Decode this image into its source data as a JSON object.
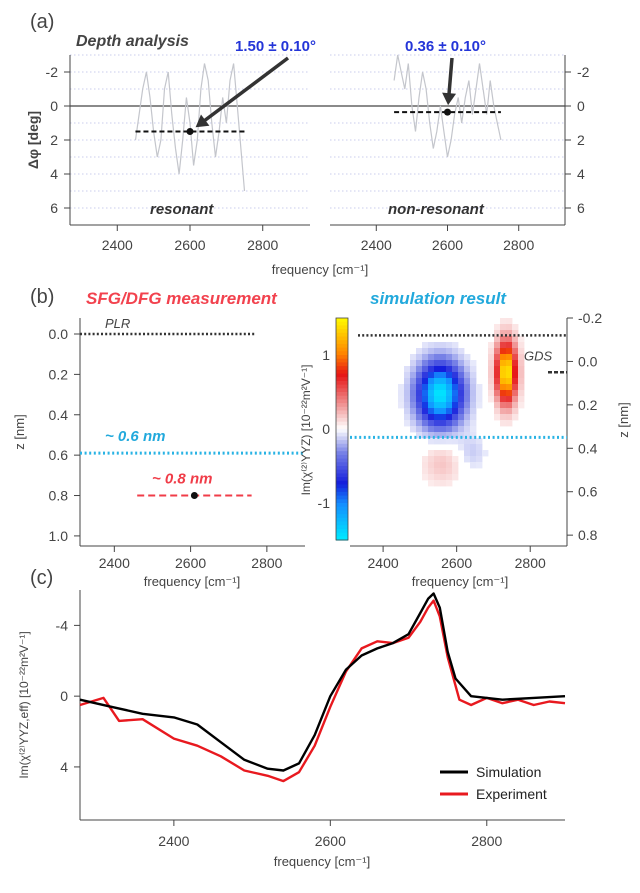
{
  "panel_labels": [
    "(a)",
    "(b)",
    "(c)"
  ],
  "colors": {
    "blue_text": "#2435d8",
    "red_text": "#f2424e",
    "cyan_text": "#22a9dc",
    "dark_text": "#444444",
    "sim_line": "#000000",
    "exp_line": "#e8191f",
    "grid": "#b8bce8"
  },
  "chart_data": [
    {
      "id": "a",
      "type": "line",
      "title": "Depth analysis",
      "ylabel": "Δφ [deg]",
      "xlabel": "frequency [cm⁻¹]",
      "yaxis_reversed": true,
      "ylim": [
        -3,
        7
      ],
      "yticks": [
        "-2",
        "0",
        "2",
        "4",
        "6"
      ],
      "grid": true,
      "subpanels": [
        {
          "name": "resonant",
          "xlim": [
            2270,
            2930
          ],
          "xticks": [
            "2400",
            "2600",
            "2800"
          ],
          "mean_line": {
            "x": [
              2450,
              2750
            ],
            "y": 1.5
          },
          "point": {
            "x": 2600,
            "y": 1.5
          },
          "annotation": "1.50 ± 0.10°",
          "trace": {
            "x": [
              2450,
              2460,
              2470,
              2480,
              2490,
              2500,
              2510,
              2520,
              2530,
              2540,
              2550,
              2560,
              2570,
              2580,
              2590,
              2600,
              2610,
              2620,
              2630,
              2640,
              2650,
              2660,
              2670,
              2680,
              2690,
              2700,
              2710,
              2720,
              2730,
              2740,
              2750
            ],
            "y": [
              2.0,
              0.5,
              -1.0,
              -2.0,
              -0.5,
              1.5,
              3.0,
              2.0,
              -1.0,
              -2.0,
              0.5,
              2.5,
              4.0,
              2.0,
              -0.5,
              1.0,
              3.5,
              2.0,
              -1.0,
              -2.5,
              -1.5,
              1.0,
              3.0,
              1.5,
              -0.5,
              1.0,
              -1.5,
              -2.5,
              0.0,
              2.5,
              5.0
            ]
          }
        },
        {
          "name": "non-resonant",
          "xlim": [
            2270,
            2930
          ],
          "xticks": [
            "2400",
            "2600",
            "2800"
          ],
          "mean_line": {
            "x": [
              2450,
              2750
            ],
            "y": 0.36
          },
          "point": {
            "x": 2600,
            "y": 0.36
          },
          "annotation": "0.36 ± 0.10°",
          "trace": {
            "x": [
              2450,
              2460,
              2470,
              2480,
              2490,
              2500,
              2510,
              2520,
              2530,
              2540,
              2550,
              2560,
              2570,
              2580,
              2590,
              2600,
              2610,
              2620,
              2630,
              2640,
              2650,
              2660,
              2670,
              2680,
              2690,
              2700,
              2710,
              2720,
              2730,
              2740,
              2750
            ],
            "y": [
              -1.5,
              -3.0,
              -2.0,
              -1.0,
              -2.5,
              0.0,
              1.5,
              -0.5,
              -2.0,
              -1.0,
              1.0,
              2.5,
              1.5,
              0.0,
              1.5,
              3.0,
              2.0,
              0.5,
              -0.5,
              1.0,
              -0.5,
              -1.5,
              0.5,
              -1.0,
              -2.5,
              -1.0,
              0.5,
              -1.5,
              0.0,
              1.0,
              2.0
            ]
          }
        }
      ]
    },
    {
      "id": "b-left",
      "type": "scatter",
      "title": "SFG/DFG measurement",
      "ylabel": "z [nm]",
      "xlabel": "frequency [cm⁻¹]",
      "xlim": [
        2310,
        2900
      ],
      "xticks": [
        "2400",
        "2600",
        "2800"
      ],
      "ylim": [
        0.0,
        1.05
      ],
      "yaxis_reversed": true,
      "yticks": [
        "0.0",
        "0.2",
        "0.4",
        "0.6",
        "0.8",
        "1.0"
      ],
      "lines": [
        {
          "label": "PLR",
          "y": 0.0,
          "x": [
            2310,
            2770
          ]
        },
        {
          "label": "~ 0.6 nm",
          "y": 0.59,
          "x": [
            2310,
            2900
          ]
        },
        {
          "label": "~ 0.8 nm",
          "y": 0.8,
          "x": [
            2460,
            2760
          ]
        }
      ],
      "point": {
        "x": 2610,
        "y": 0.8
      }
    },
    {
      "id": "b-right",
      "type": "heatmap",
      "title": "simulation result",
      "ylabel_left": "Im(χ⁽²⁾YYZ) [10⁻²²m²V⁻¹]",
      "ylabel_right": "z [nm]",
      "xlabel": "frequency [cm⁻¹]",
      "xlim": [
        2310,
        2900
      ],
      "xticks": [
        "2400",
        "2600",
        "2800"
      ],
      "colorbar_ticks": [
        "1",
        "0",
        "-1"
      ],
      "colorbar_range": [
        1.5,
        -1.5
      ],
      "zlim": [
        -0.2,
        0.85
      ],
      "zticks": [
        "-0.2",
        "0.0",
        "0.2",
        "0.4",
        "0.6",
        "0.8"
      ],
      "lines": [
        {
          "label": "GDS",
          "z": 0.05
        },
        {
          "label": "",
          "z": -0.12
        },
        {
          "label": "",
          "z": 0.35
        }
      ],
      "blobs": [
        {
          "x": 2555,
          "z": 0.15,
          "value": -1.6,
          "sx": 60,
          "sz": 0.14
        },
        {
          "x": 2735,
          "z": 0.05,
          "value": 1.6,
          "sx": 28,
          "sz": 0.14
        },
        {
          "x": 2560,
          "z": 0.47,
          "value": 0.2,
          "sx": 55,
          "sz": 0.1
        },
        {
          "x": 2640,
          "z": 0.42,
          "value": -0.15,
          "sx": 40,
          "sz": 0.08
        }
      ]
    },
    {
      "id": "c",
      "type": "line",
      "ylabel": "Im(χ⁽²⁾YYZ,eff) [10⁻²²m²V⁻¹]",
      "xlabel": "frequency [cm⁻¹]",
      "xlim": [
        2280,
        2900
      ],
      "xticks": [
        "2400",
        "2600",
        "2800"
      ],
      "ylim": [
        -6,
        7
      ],
      "yaxis_reversed": true,
      "yticks": [
        "-4",
        "0",
        "4"
      ],
      "legend": "bottom-right",
      "series": [
        {
          "name": "Simulation",
          "x": [
            2280,
            2320,
            2360,
            2400,
            2430,
            2460,
            2490,
            2520,
            2540,
            2560,
            2580,
            2600,
            2620,
            2640,
            2660,
            2680,
            2700,
            2715,
            2725,
            2732,
            2740,
            2750,
            2760,
            2780,
            2820,
            2860,
            2900
          ],
          "y": [
            0.2,
            0.6,
            1.0,
            1.2,
            1.6,
            2.6,
            3.6,
            4.1,
            4.2,
            3.8,
            2.2,
            0.0,
            -1.5,
            -2.3,
            -2.7,
            -3.0,
            -3.5,
            -4.7,
            -5.5,
            -5.8,
            -5.0,
            -2.5,
            -1.0,
            0.0,
            0.2,
            0.1,
            0.0
          ]
        },
        {
          "name": "Experiment",
          "x": [
            2280,
            2310,
            2330,
            2360,
            2400,
            2430,
            2460,
            2490,
            2520,
            2540,
            2560,
            2580,
            2600,
            2620,
            2640,
            2660,
            2680,
            2700,
            2715,
            2725,
            2732,
            2740,
            2750,
            2765,
            2780,
            2800,
            2820,
            2840,
            2860,
            2880,
            2900
          ],
          "y": [
            0.5,
            0.1,
            1.4,
            1.3,
            2.4,
            2.8,
            3.4,
            4.2,
            4.5,
            4.8,
            4.3,
            2.8,
            0.6,
            -1.4,
            -2.7,
            -3.1,
            -3.0,
            -3.3,
            -4.2,
            -5.0,
            -5.4,
            -4.5,
            -2.2,
            0.2,
            0.5,
            0.1,
            0.4,
            0.2,
            0.5,
            0.3,
            0.4
          ]
        }
      ]
    }
  ]
}
